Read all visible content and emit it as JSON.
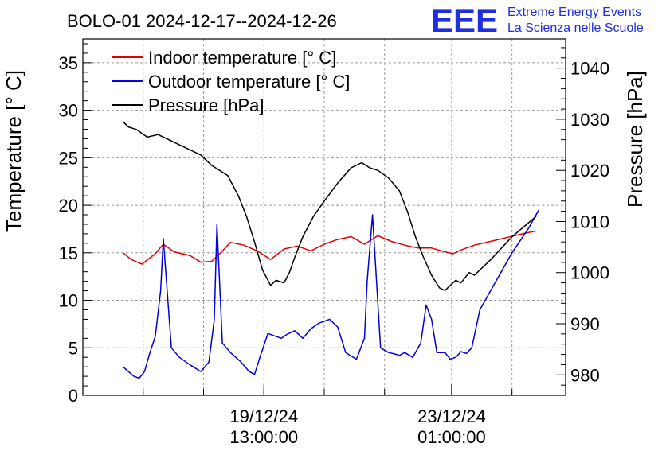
{
  "title": "BOLO-01 2024-12-17--2024-12-26",
  "logo": {
    "mark": "EEE",
    "line1": "Extreme Energy Events",
    "line2": "La Scienza nelle Scuole",
    "color": "#1f2fe0"
  },
  "chart_data": {
    "type": "line",
    "title": "BOLO-01 2024-12-17--2024-12-26",
    "xlabel": "",
    "ylabel": "Temperature [° C]",
    "y2label": "Pressure [hPa]",
    "grid": true,
    "legend_position": "top-left",
    "xlim": [
      0.0,
      9.0
    ],
    "ylim": [
      0,
      37.5
    ],
    "y2lim": [
      976,
      1045.7
    ],
    "x_ticks": [
      {
        "x": 3.375,
        "label1": "19/12/24",
        "label2": "13:00:00"
      },
      {
        "x": 6.875,
        "label1": "23/12/24",
        "label2": "01:00:00"
      }
    ],
    "y_ticks": [
      0,
      5,
      10,
      15,
      20,
      25,
      30,
      35
    ],
    "y2_ticks": [
      980,
      990,
      1000,
      1010,
      1020,
      1030,
      1040
    ],
    "series": [
      {
        "name": "Indoor temperature [° C]",
        "axis": "left",
        "color": "#e00000",
        "x": [
          0.75,
          0.9,
          1.1,
          1.35,
          1.5,
          1.7,
          2.0,
          2.2,
          2.4,
          2.55,
          2.75,
          3.0,
          3.25,
          3.5,
          3.75,
          4.0,
          4.25,
          4.5,
          4.75,
          5.0,
          5.25,
          5.5,
          5.75,
          6.0,
          6.25,
          6.5,
          6.75,
          6.9,
          7.05,
          7.3,
          7.6,
          7.9,
          8.2,
          8.45
        ],
        "y": [
          15.0,
          14.3,
          13.8,
          14.9,
          15.9,
          15.1,
          14.7,
          14.0,
          14.1,
          14.9,
          16.1,
          15.8,
          15.2,
          14.3,
          15.4,
          15.7,
          15.2,
          15.9,
          16.4,
          16.7,
          15.9,
          16.8,
          16.2,
          15.8,
          15.5,
          15.5,
          15.1,
          14.9,
          15.3,
          15.8,
          16.2,
          16.6,
          17.0,
          17.3
        ]
      },
      {
        "name": "Outdoor temperature [° C]",
        "axis": "left",
        "color": "#0000e0",
        "x": [
          0.75,
          0.85,
          0.95,
          1.05,
          1.15,
          1.25,
          1.35,
          1.45,
          1.5,
          1.65,
          1.8,
          2.0,
          2.2,
          2.35,
          2.45,
          2.5,
          2.6,
          2.75,
          2.95,
          3.1,
          3.2,
          3.3,
          3.45,
          3.6,
          3.7,
          3.8,
          3.95,
          4.1,
          4.25,
          4.4,
          4.6,
          4.75,
          4.9,
          5.1,
          5.25,
          5.3,
          5.4,
          5.55,
          5.7,
          5.85,
          5.9,
          6.0,
          6.15,
          6.3,
          6.4,
          6.5,
          6.6,
          6.75,
          6.85,
          6.95,
          7.05,
          7.15,
          7.25,
          7.4,
          7.7,
          8.0,
          8.3,
          8.5
        ],
        "y": [
          3.0,
          2.5,
          2.0,
          1.8,
          2.5,
          4.5,
          6.2,
          11.0,
          16.5,
          5.0,
          4.0,
          3.2,
          2.5,
          3.5,
          8.0,
          18.0,
          5.5,
          4.5,
          3.5,
          2.5,
          2.2,
          4.0,
          6.5,
          6.2,
          6.0,
          6.4,
          6.8,
          6.0,
          7.0,
          7.6,
          8.0,
          7.2,
          4.5,
          3.8,
          6.0,
          12.0,
          19.0,
          5.0,
          4.5,
          4.3,
          4.2,
          4.5,
          4.0,
          5.5,
          9.5,
          8.0,
          4.5,
          4.5,
          3.8,
          4.0,
          4.6,
          4.4,
          5.0,
          9.0,
          12.0,
          15.0,
          17.5,
          19.5
        ]
      },
      {
        "name": "Pressure [hPa]",
        "axis": "right",
        "color": "#000000",
        "x": [
          0.75,
          0.85,
          1.0,
          1.2,
          1.4,
          1.6,
          1.8,
          2.0,
          2.2,
          2.4,
          2.55,
          2.7,
          2.9,
          3.05,
          3.2,
          3.35,
          3.5,
          3.6,
          3.75,
          3.85,
          3.95,
          4.1,
          4.3,
          4.5,
          4.75,
          5.0,
          5.2,
          5.35,
          5.5,
          5.7,
          5.9,
          6.05,
          6.2,
          6.35,
          6.5,
          6.65,
          6.75,
          6.85,
          6.95,
          7.05,
          7.2,
          7.3,
          7.6,
          8.0,
          8.45
        ],
        "y": [
          1029.5,
          1028.5,
          1028.0,
          1026.5,
          1027.0,
          1026.0,
          1025.0,
          1024.0,
          1023.0,
          1021.0,
          1020.0,
          1019.0,
          1015.0,
          1011.0,
          1006.0,
          1000.5,
          997.5,
          998.5,
          998.0,
          1000.0,
          1003.0,
          1007.0,
          1011.0,
          1014.0,
          1017.5,
          1020.5,
          1021.5,
          1020.5,
          1020.0,
          1018.5,
          1016.0,
          1012.0,
          1007.0,
          1003.0,
          999.5,
          997.0,
          996.5,
          997.5,
          998.5,
          998.0,
          1000.0,
          999.5,
          1002.5,
          1007.0,
          1011.0
        ]
      }
    ]
  }
}
